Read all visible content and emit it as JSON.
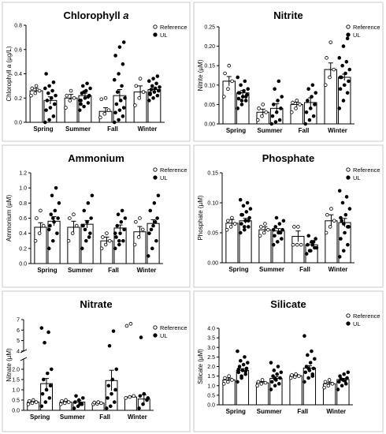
{
  "legend": {
    "reference": "Reference",
    "ul": "UL"
  },
  "seasons": [
    "Spring",
    "Summer",
    "Fall",
    "Winter"
  ],
  "chart_data": [
    {
      "type": "bar",
      "title": "Chlorophyll a",
      "title_main": "Chlorophyll ",
      "title_italic": "a",
      "ylabel": "Chlorophyll a (µg/L)",
      "ylim": [
        0,
        0.8
      ],
      "yticks": [
        "0.0",
        "0.2",
        "0.4",
        "0.6",
        "0.8"
      ],
      "categories": [
        "Spring",
        "Summer",
        "Fall",
        "Winter"
      ],
      "legend_placement": "top-right",
      "series": [
        {
          "name": "Reference",
          "values": [
            0.26,
            0.2,
            0.09,
            0.25
          ],
          "errors": [
            0.02,
            0.03,
            0.03,
            0.05
          ],
          "points": [
            [
              0.22,
              0.24,
              0.26,
              0.28,
              0.3
            ],
            [
              0.12,
              0.18,
              0.2,
              0.22,
              0.26
            ],
            [
              0.04,
              0.07,
              0.1,
              0.19,
              0.2
            ],
            [
              0.14,
              0.2,
              0.25,
              0.3,
              0.36
            ]
          ]
        },
        {
          "name": "UL",
          "values": [
            0.18,
            0.22,
            0.22,
            0.27
          ],
          "errors": [
            0.03,
            0.02,
            0.05,
            0.01
          ],
          "points": [
            [
              0.0,
              0.02,
              0.05,
              0.1,
              0.12,
              0.15,
              0.18,
              0.2,
              0.22,
              0.24,
              0.26,
              0.28,
              0.3,
              0.33,
              0.4
            ],
            [
              0.1,
              0.13,
              0.16,
              0.18,
              0.2,
              0.22,
              0.24,
              0.26,
              0.28,
              0.3,
              0.32,
              0.18,
              0.25,
              0.21,
              0.15
            ],
            [
              0.0,
              0.02,
              0.05,
              0.08,
              0.1,
              0.12,
              0.15,
              0.18,
              0.2,
              0.25,
              0.3,
              0.35,
              0.4,
              0.48,
              0.55,
              0.62,
              0.66
            ],
            [
              0.18,
              0.2,
              0.22,
              0.24,
              0.25,
              0.26,
              0.27,
              0.28,
              0.29,
              0.3,
              0.32,
              0.34,
              0.36,
              0.38,
              0.23
            ]
          ]
        }
      ]
    },
    {
      "type": "bar",
      "title": "Nitrite",
      "ylabel": "Nitrite (µM)",
      "ylim": [
        0,
        0.25
      ],
      "yticks": [
        "0.00",
        "0.05",
        "0.10",
        "0.15",
        "0.20",
        "0.25"
      ],
      "categories": [
        "Spring",
        "Summer",
        "Fall",
        "Winter"
      ],
      "legend_placement": "top-right",
      "series": [
        {
          "name": "Reference",
          "values": [
            0.11,
            0.03,
            0.05,
            0.14
          ],
          "errors": [
            0.012,
            0.008,
            0.006,
            0.017
          ],
          "points": [
            [
              0.07,
              0.09,
              0.11,
              0.13,
              0.15
            ],
            [
              0.01,
              0.02,
              0.03,
              0.04,
              0.05
            ],
            [
              0.03,
              0.04,
              0.05,
              0.055,
              0.06
            ],
            [
              0.1,
              0.12,
              0.14,
              0.17,
              0.21
            ]
          ]
        },
        {
          "name": "UL",
          "values": [
            0.08,
            0.04,
            0.055,
            0.12
          ],
          "errors": [
            0.006,
            0.012,
            0.012,
            0.008
          ],
          "points": [
            [
              0.04,
              0.05,
              0.06,
              0.065,
              0.07,
              0.075,
              0.08,
              0.085,
              0.09,
              0.1,
              0.11,
              0.12,
              0.06,
              0.07,
              0.08
            ],
            [
              0.0,
              0.005,
              0.01,
              0.02,
              0.03,
              0.04,
              0.05,
              0.06,
              0.07,
              0.09,
              0.11
            ],
            [
              0.0,
              0.01,
              0.02,
              0.03,
              0.04,
              0.05,
              0.06,
              0.07,
              0.08,
              0.09,
              0.1
            ],
            [
              0.04,
              0.06,
              0.08,
              0.09,
              0.1,
              0.11,
              0.12,
              0.13,
              0.14,
              0.15,
              0.16,
              0.17,
              0.2,
              0.22,
              0.12
            ]
          ]
        }
      ]
    },
    {
      "type": "bar",
      "title": "Ammonium",
      "ylabel": "Ammonium (µM)",
      "ylim": [
        0,
        1.2
      ],
      "yticks": [
        "0.0",
        "0.2",
        "0.4",
        "0.6",
        "0.8",
        "1.0",
        "1.2"
      ],
      "categories": [
        "Spring",
        "Summer",
        "Fall",
        "Winter"
      ],
      "legend_placement": "top-right",
      "series": [
        {
          "name": "Reference",
          "values": [
            0.48,
            0.48,
            0.3,
            0.42
          ],
          "errors": [
            0.06,
            0.08,
            0.05,
            0.07
          ],
          "points": [
            [
              0.3,
              0.4,
              0.5,
              0.6,
              0.7
            ],
            [
              0.3,
              0.4,
              0.5,
              0.6,
              0.65
            ],
            [
              0.2,
              0.25,
              0.3,
              0.35,
              0.4
            ],
            [
              0.25,
              0.35,
              0.45,
              0.55,
              0.6
            ]
          ]
        },
        {
          "name": "UL",
          "values": [
            0.56,
            0.52,
            0.47,
            0.53
          ],
          "errors": [
            0.06,
            0.05,
            0.04,
            0.05
          ],
          "points": [
            [
              0.2,
              0.3,
              0.4,
              0.5,
              0.55,
              0.6,
              0.65,
              0.7,
              0.8,
              0.9,
              1.0,
              0.45,
              0.6
            ],
            [
              0.2,
              0.3,
              0.4,
              0.5,
              0.55,
              0.6,
              0.7,
              0.8,
              0.9,
              0.45,
              0.35
            ],
            [
              0.2,
              0.25,
              0.3,
              0.35,
              0.4,
              0.45,
              0.5,
              0.55,
              0.6,
              0.65,
              0.7,
              0.4,
              0.3
            ],
            [
              0.1,
              0.2,
              0.3,
              0.4,
              0.5,
              0.6,
              0.7,
              0.8,
              0.9,
              0.45,
              0.55
            ]
          ]
        }
      ]
    },
    {
      "type": "bar",
      "title": "Phosphate",
      "ylabel": "Phosphate (µM)",
      "ylim": [
        0,
        0.15
      ],
      "yticks": [
        "0.00",
        "0.05",
        "0.10",
        "0.15"
      ],
      "categories": [
        "Spring",
        "Summer",
        "Fall",
        "Winter"
      ],
      "legend_placement": "top-right",
      "series": [
        {
          "name": "Reference",
          "values": [
            0.066,
            0.055,
            0.044,
            0.07
          ],
          "errors": [
            0.006,
            0.005,
            0.009,
            0.01
          ],
          "points": [
            [
              0.055,
              0.06,
              0.065,
              0.07,
              0.075
            ],
            [
              0.045,
              0.05,
              0.055,
              0.06,
              0.065
            ],
            [
              0.03,
              0.03,
              0.03,
              0.06,
              0.06
            ],
            [
              0.05,
              0.06,
              0.07,
              0.08,
              0.09
            ]
          ]
        },
        {
          "name": "UL",
          "values": [
            0.07,
            0.053,
            0.03,
            0.067
          ],
          "errors": [
            0.004,
            0.004,
            0.003,
            0.007
          ],
          "points": [
            [
              0.05,
              0.055,
              0.06,
              0.065,
              0.07,
              0.075,
              0.08,
              0.085,
              0.09,
              0.095,
              0.1,
              0.105,
              0.06,
              0.07,
              0.08
            ],
            [
              0.03,
              0.035,
              0.04,
              0.045,
              0.05,
              0.055,
              0.06,
              0.065,
              0.07,
              0.075,
              0.05,
              0.055
            ],
            [
              0.015,
              0.02,
              0.025,
              0.03,
              0.035,
              0.04,
              0.045,
              0.03,
              0.025,
              0.02,
              0.035
            ],
            [
              0.01,
              0.02,
              0.03,
              0.04,
              0.05,
              0.06,
              0.07,
              0.08,
              0.09,
              0.1,
              0.11,
              0.12,
              0.065,
              0.06,
              0.075
            ]
          ]
        }
      ]
    },
    {
      "type": "bar",
      "title": "Nitrate",
      "ylabel": "Nitrate (µM)",
      "ylim": [
        0,
        7
      ],
      "axis_break": [
        2.5,
        4
      ],
      "yticks": [
        "0.0",
        "0.5",
        "1.0",
        "1.5",
        "2.0",
        "4",
        "5",
        "6",
        "7"
      ],
      "categories": [
        "Spring",
        "Summer",
        "Fall",
        "Winter"
      ],
      "legend_placement": "right",
      "series": [
        {
          "name": "Reference",
          "values": [
            0.4,
            0.4,
            0.35,
            0.65
          ],
          "errors": [
            0.05,
            0.05,
            0.03,
            0.04
          ],
          "points": [
            [
              0.3,
              0.35,
              0.4,
              0.45,
              0.5
            ],
            [
              0.3,
              0.35,
              0.4,
              0.45,
              0.5
            ],
            [
              0.3,
              0.32,
              0.35,
              0.38,
              0.4
            ],
            [
              0.6,
              0.65,
              0.7,
              6.4,
              6.6
            ]
          ]
        },
        {
          "name": "UL",
          "values": [
            1.3,
            0.4,
            1.45,
            0.55
          ],
          "errors": [
            0.25,
            0.07,
            0.5,
            0.2
          ],
          "points": [
            [
              0.2,
              0.4,
              0.6,
              0.8,
              1.0,
              1.2,
              1.5,
              1.8,
              2.0,
              4.8,
              5.8,
              6.2
            ],
            [
              0.1,
              0.2,
              0.3,
              0.4,
              0.5,
              0.6,
              0.7,
              0.3
            ],
            [
              0.1,
              0.2,
              0.4,
              0.6,
              0.8,
              1.0,
              1.2,
              1.5,
              2.0,
              4.5,
              5.9
            ],
            [
              0.1,
              0.3,
              0.5,
              0.7,
              0.8,
              0.6,
              5.3
            ]
          ]
        }
      ]
    },
    {
      "type": "bar",
      "title": "Silicate",
      "ylabel": "Silicate (µM)",
      "ylim": [
        0,
        4
      ],
      "yticks": [
        "0.0",
        "0.5",
        "1.0",
        "1.5",
        "2.0",
        "2.5",
        "3.0",
        "3.5",
        "4.0"
      ],
      "categories": [
        "Spring",
        "Summer",
        "Fall",
        "Winter"
      ],
      "legend_placement": "top-right",
      "series": [
        {
          "name": "Reference",
          "values": [
            1.3,
            1.15,
            1.52,
            1.1
          ],
          "errors": [
            0.1,
            0.07,
            0.06,
            0.08
          ],
          "points": [
            [
              1.1,
              1.2,
              1.3,
              1.4,
              1.5
            ],
            [
              1.0,
              1.1,
              1.15,
              1.2,
              1.3
            ],
            [
              1.4,
              1.45,
              1.5,
              1.55,
              1.6
            ],
            [
              0.9,
              1.0,
              1.1,
              1.2,
              1.3
            ]
          ]
        },
        {
          "name": "UL",
          "values": [
            1.8,
            1.38,
            1.92,
            1.32
          ],
          "errors": [
            0.09,
            0.08,
            0.12,
            0.06
          ],
          "points": [
            [
              1.2,
              1.4,
              1.6,
              1.7,
              1.8,
              1.9,
              2.0,
              2.1,
              2.2,
              2.3,
              2.5,
              2.8,
              1.5,
              1.75,
              1.85
            ],
            [
              0.8,
              1.0,
              1.1,
              1.2,
              1.3,
              1.4,
              1.5,
              1.6,
              1.7,
              1.8,
              2.0,
              2.2,
              1.35
            ],
            [
              1.2,
              1.4,
              1.6,
              1.7,
              1.8,
              1.9,
              2.0,
              2.2,
              2.4,
              2.6,
              2.8,
              3.6,
              1.9,
              1.5
            ],
            [
              0.8,
              1.0,
              1.1,
              1.2,
              1.3,
              1.4,
              1.5,
              1.6,
              1.7,
              1.35,
              1.25
            ]
          ]
        }
      ]
    }
  ]
}
